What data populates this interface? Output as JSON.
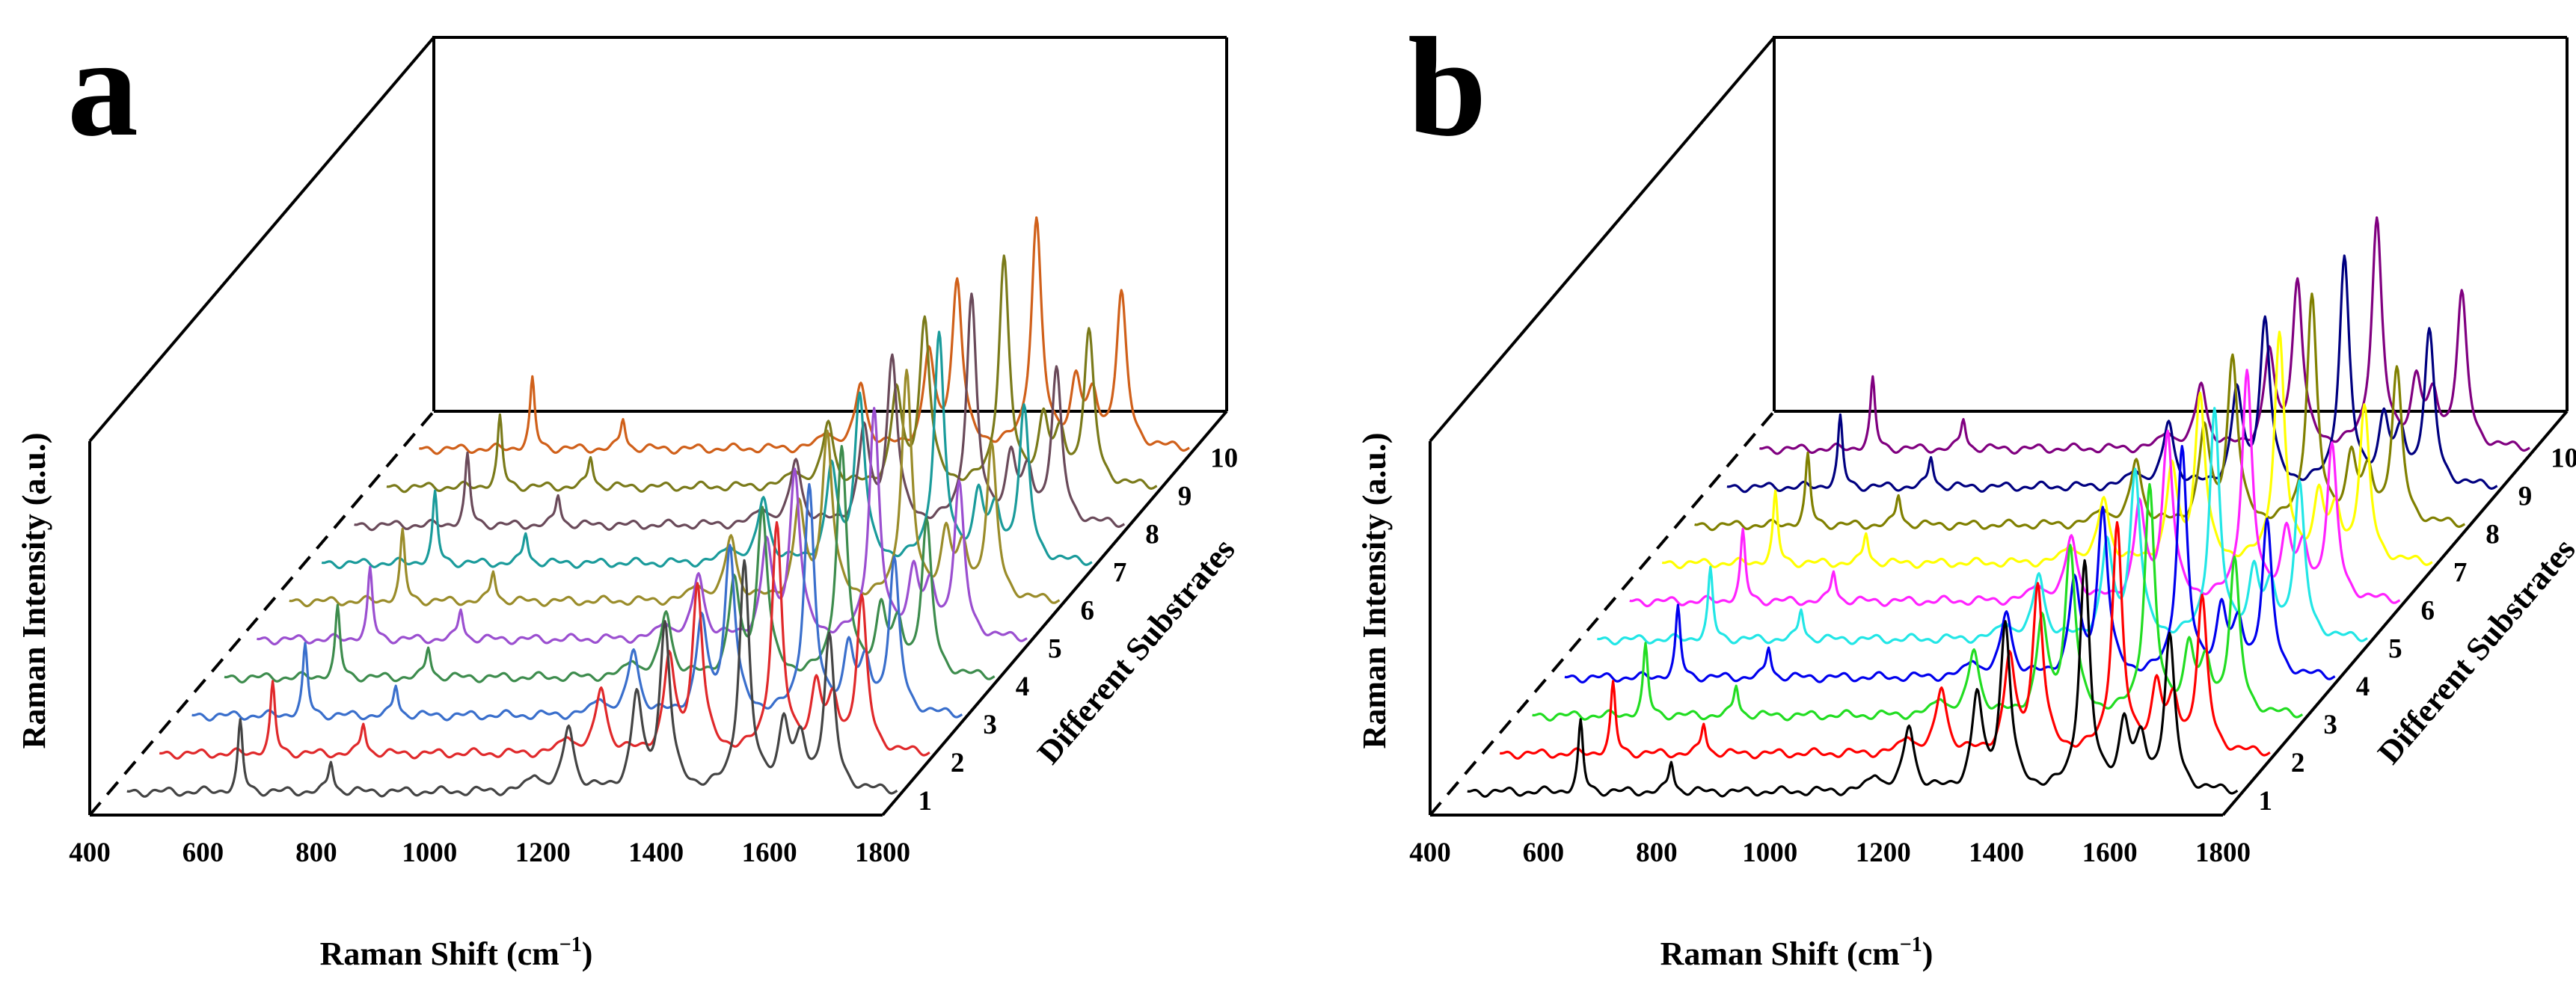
{
  "chart_data": [
    {
      "panel": "a",
      "type": "line",
      "xlabel": "Raman Shift (cm",
      "xlabel_sup": "−1",
      "xlabel_end": ")",
      "ylabel": "Raman Intensity (a.u.)",
      "zlabel": "Different Substrates",
      "xlim": [
        400,
        1800
      ],
      "xticks": [
        "400",
        "600",
        "800",
        "1000",
        "1200",
        "1400",
        "1600",
        "1800"
      ],
      "zticks": [
        "1",
        "2",
        "3",
        "4",
        "5",
        "6",
        "7",
        "8",
        "9",
        "10"
      ],
      "series": [
        {
          "name": "1",
          "color": "#444444"
        },
        {
          "name": "2",
          "color": "#e0292b"
        },
        {
          "name": "3",
          "color": "#3a6fcc"
        },
        {
          "name": "4",
          "color": "#3d8c4d"
        },
        {
          "name": "5",
          "color": "#9b4fd0"
        },
        {
          "name": "6",
          "color": "#9a8c2a"
        },
        {
          "name": "7",
          "color": "#1a9b9b"
        },
        {
          "name": "8",
          "color": "#6a4a5a"
        },
        {
          "name": "9",
          "color": "#7a7a1a"
        },
        {
          "name": "10",
          "color": "#d0601a"
        }
      ]
    },
    {
      "panel": "b",
      "type": "line",
      "xlabel": "Raman Shift (cm",
      "xlabel_sup": "−1",
      "xlabel_end": ")",
      "ylabel": "Raman Intensity (a.u.)",
      "zlabel": "Different Substrates",
      "xlim": [
        400,
        1800
      ],
      "xticks": [
        "400",
        "600",
        "800",
        "1000",
        "1200",
        "1400",
        "1600",
        "1800"
      ],
      "zticks": [
        "1",
        "2",
        "3",
        "4",
        "5",
        "6",
        "7",
        "8",
        "9",
        "10"
      ],
      "series": [
        {
          "name": "1",
          "color": "#000000"
        },
        {
          "name": "2",
          "color": "#ff0000"
        },
        {
          "name": "3",
          "color": "#22dd22"
        },
        {
          "name": "4",
          "color": "#0000ee"
        },
        {
          "name": "5",
          "color": "#22e6e6"
        },
        {
          "name": "6",
          "color": "#ff22ff"
        },
        {
          "name": "7",
          "color": "#ffff00"
        },
        {
          "name": "8",
          "color": "#808000"
        },
        {
          "name": "9",
          "color": "#000080"
        },
        {
          "name": "10",
          "color": "#800080"
        }
      ]
    }
  ],
  "spectrum_peaks": [
    {
      "shift": 640,
      "height": 1.0
    },
    {
      "shift": 800,
      "height": 0.45
    },
    {
      "shift": 1160,
      "height": 0.25
    },
    {
      "shift": 1220,
      "height": 0.95
    },
    {
      "shift": 1340,
      "height": 1.35
    },
    {
      "shift": 1390,
      "height": 2.4
    },
    {
      "shift": 1530,
      "height": 3.3
    },
    {
      "shift": 1600,
      "height": 0.95
    },
    {
      "shift": 1630,
      "height": 0.65
    },
    {
      "shift": 1680,
      "height": 2.2
    }
  ]
}
